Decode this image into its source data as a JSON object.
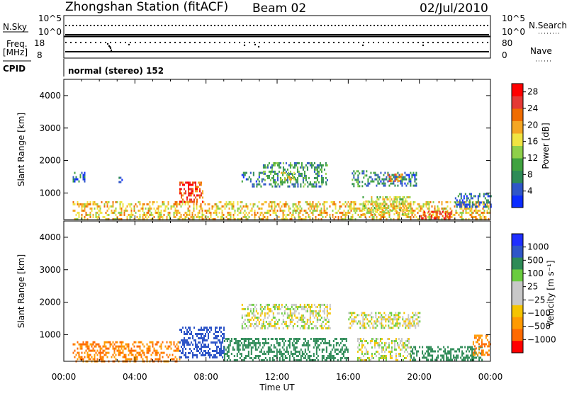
{
  "header": {
    "station": "Zhongshan Station (fitACF)",
    "beam": "Beam 02",
    "date": "02/Jul/2010"
  },
  "top_panels": {
    "nsky_label": "N.Sky",
    "nsky_ticks": [
      "10^5",
      "10^0"
    ],
    "nsearch_label": "N.Search",
    "nsearch_ticks": [
      "10^5",
      "10^0"
    ],
    "freq_label": "Freq.",
    "freq_unit": "[MHz]",
    "freq_ticks": [
      "18",
      "8"
    ],
    "nave_label": "Nave",
    "nave_ticks": [
      "80",
      "0"
    ],
    "cpid_label": "CPID",
    "cpid_text": "normal (stereo) 152"
  },
  "colors": {
    "power_scale": [
      "#0b2cff",
      "#2f56c8",
      "#2e8b57",
      "#3fa23f",
      "#8fd04a",
      "#f0e442",
      "#f5a623",
      "#ef6c00",
      "#e53935",
      "#ff0000"
    ],
    "velocity_scale": [
      "#1f2fff",
      "#2f56c8",
      "#2e8b57",
      "#6acc3f",
      "#c8c8c8",
      "#c8c8c8",
      "#f5c400",
      "#ff9a00",
      "#ff6a00",
      "#ff0000"
    ]
  },
  "chart_data": [
    {
      "type": "heatmap",
      "name": "power",
      "xlabel": "Time UT",
      "ylabel": "Slant Range [km]",
      "x_ticks": [
        "00:00",
        "04:00",
        "08:00",
        "12:00",
        "16:00",
        "20:00",
        "00:00"
      ],
      "y_ticks": [
        1000,
        2000,
        3000,
        4000
      ],
      "xlim_hours": [
        0,
        24
      ],
      "ylim": [
        180,
        4500
      ],
      "colorbar_label": "Power [dB]",
      "colorbar_ticks": [
        4,
        8,
        12,
        16,
        20,
        24,
        28
      ],
      "colorbar_range": [
        0,
        30
      ],
      "patches": [
        {
          "t0": 0.5,
          "t1": 24.0,
          "r0": 200,
          "r1": 750,
          "v": 18
        },
        {
          "t0": 0.5,
          "t1": 1.2,
          "r0": 1350,
          "r1": 1650,
          "v": 6
        },
        {
          "t0": 3.0,
          "t1": 3.3,
          "r0": 1350,
          "r1": 1500,
          "v": 6
        },
        {
          "t0": 6.5,
          "t1": 7.8,
          "r0": 750,
          "r1": 1350,
          "v": 24
        },
        {
          "t0": 10.0,
          "t1": 11.2,
          "r0": 1350,
          "r1": 1650,
          "v": 5
        },
        {
          "t0": 11.2,
          "t1": 14.8,
          "r0": 1300,
          "r1": 1950,
          "v": 9
        },
        {
          "t0": 12.2,
          "t1": 13.0,
          "r0": 1400,
          "r1": 1650,
          "v": 16
        },
        {
          "t0": 10.5,
          "t1": 14.8,
          "r0": 1200,
          "r1": 1300,
          "v": 8
        },
        {
          "t0": 16.2,
          "t1": 17.0,
          "r0": 1200,
          "r1": 1700,
          "v": 8
        },
        {
          "t0": 17.0,
          "t1": 19.8,
          "r0": 1250,
          "r1": 1650,
          "v": 7
        },
        {
          "t0": 18.2,
          "t1": 19.0,
          "r0": 1400,
          "r1": 1600,
          "v": 20
        },
        {
          "t0": 16.8,
          "t1": 19.5,
          "r0": 350,
          "r1": 900,
          "v": 16
        },
        {
          "t0": 20.0,
          "t1": 21.8,
          "r0": 200,
          "r1": 450,
          "v": 26
        },
        {
          "t0": 22.0,
          "t1": 24.0,
          "r0": 600,
          "r1": 1000,
          "v": 5
        }
      ]
    },
    {
      "type": "heatmap",
      "name": "velocity",
      "xlabel": "Time UT",
      "ylabel": "Slant Range [km]",
      "x_ticks": [
        "00:00",
        "04:00",
        "08:00",
        "12:00",
        "16:00",
        "20:00",
        "00:00"
      ],
      "y_ticks": [
        1000,
        2000,
        3000,
        4000
      ],
      "xlim_hours": [
        0,
        24
      ],
      "ylim": [
        180,
        4500
      ],
      "colorbar_label": "Velocity [m s⁻¹]",
      "colorbar_ticks": [
        "1000",
        "500",
        "100",
        "25",
        "−25",
        "−100",
        "−500",
        "−1000"
      ],
      "patches": [
        {
          "t0": 0.5,
          "t1": 6.5,
          "r0": 200,
          "r1": 800,
          "v": -300
        },
        {
          "t0": 6.5,
          "t1": 9.0,
          "r0": 300,
          "r1": 1250,
          "v": 700
        },
        {
          "t0": 9.0,
          "t1": 16.0,
          "r0": 200,
          "r1": 900,
          "v": 150
        },
        {
          "t0": 10.0,
          "t1": 15.0,
          "r0": 1200,
          "r1": 1950,
          "v": 0
        },
        {
          "t0": 16.0,
          "t1": 20.0,
          "r0": 1200,
          "r1": 1700,
          "v": 0
        },
        {
          "t0": 16.5,
          "t1": 19.5,
          "r0": 200,
          "r1": 900,
          "v": 0
        },
        {
          "t0": 19.5,
          "t1": 23.5,
          "r0": 200,
          "r1": 650,
          "v": 200
        },
        {
          "t0": 23.0,
          "t1": 24.0,
          "r0": 400,
          "r1": 1000,
          "v": -300
        }
      ]
    }
  ]
}
